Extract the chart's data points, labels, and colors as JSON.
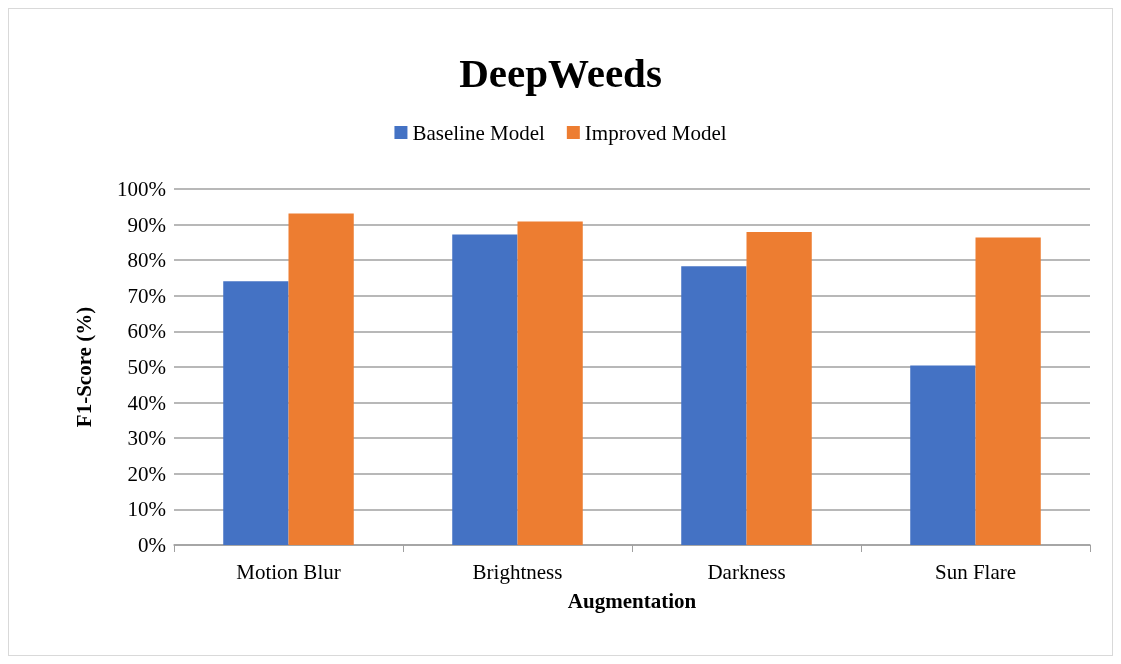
{
  "chart_data": {
    "type": "bar",
    "title": "DeepWeeds",
    "xlabel": "Augmentation",
    "ylabel": "F1-Score (%)",
    "categories": [
      "Motion Blur",
      "Brightness",
      "Darkness",
      "Sun Flare"
    ],
    "series": [
      {
        "name": "Baseline Model",
        "color": "#4472c4",
        "values": [
          74.1,
          87.2,
          78.3,
          50.4
        ]
      },
      {
        "name": "Improved Model",
        "color": "#ed7d31",
        "values": [
          93.1,
          90.9,
          87.9,
          86.4
        ]
      }
    ],
    "ylim": [
      0,
      100
    ],
    "yticks": [
      {
        "value": 0,
        "label": "0%"
      },
      {
        "value": 10,
        "label": "10%"
      },
      {
        "value": 20,
        "label": "20%"
      },
      {
        "value": 30,
        "label": "30%"
      },
      {
        "value": 40,
        "label": "40%"
      },
      {
        "value": 50,
        "label": "50%"
      },
      {
        "value": 60,
        "label": "60%"
      },
      {
        "value": 70,
        "label": "70%"
      },
      {
        "value": 80,
        "label": "80%"
      },
      {
        "value": 90,
        "label": "90%"
      },
      {
        "value": 100,
        "label": "100%"
      }
    ],
    "grid": "y",
    "legend": "top"
  }
}
